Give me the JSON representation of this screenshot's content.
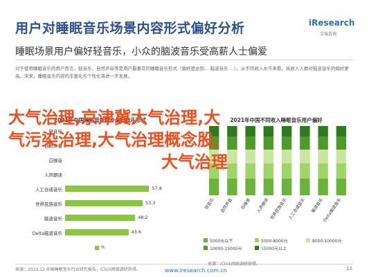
{
  "header": {
    "title": "用户对睡眠音乐场景内容形式偏好分析",
    "logo": "iResearch",
    "logo_sub": "艾瑞咨询",
    "subtitle": "睡眠场景用户偏好轻音乐，小众的脑波音乐受高薪人士偏爱",
    "note": "对于使用睡眠音乐的用户而言，轻音乐、自然声音等是用户最喜欢的睡眠音乐形式（偏好度达到… 脑波音乐 …）。从不同收入水平来看，高收入人群对脑波音乐的偏好更高。未来，睡眠音乐内容的丰富化与个性化将进一步发展。"
  },
  "overlay": {
    "line1": "大气治理,京津冀大气治理,大",
    "line2": "气污染治理,大气治理概念股,",
    "line3": "大气治理"
  },
  "chart_data": [
    {
      "type": "bar",
      "orientation": "horizontal",
      "title": "2021年中国睡眠音乐用户偏好音乐形式",
      "categories": [
        "轻音乐",
        "自然声音",
        "白噪音",
        "人声朗读",
        "人工合成音乐",
        "世界民族音乐",
        "脑波音乐",
        "Delta脑波音乐"
      ],
      "values": [
        null,
        null,
        null,
        null,
        57.8,
        53.3,
        48.2,
        43.6
      ],
      "value_labels": [
        "",
        "",
        "",
        "",
        "57.8",
        "53.3",
        "48.2",
        "43.6"
      ],
      "legend": [
        "%"
      ],
      "bar_color": "#8cc63f"
    },
    {
      "type": "bar",
      "stacked": true,
      "title": "2021年中国不同收入睡眠音乐用户偏好",
      "categories": [
        "轻音乐",
        "自然声音",
        "白噪音",
        "人声朗读",
        "世界民族音乐",
        "人工合成音乐",
        "脑波音乐",
        "Delta脑波音乐"
      ],
      "series": [
        {
          "name": "5000元以下",
          "color": "#6bb33a"
        },
        {
          "name": "5000-8000元",
          "color": "#9fd468"
        },
        {
          "name": "8000-10000元",
          "color": "#c8e6a0"
        },
        {
          "name": "10000-15000元",
          "color": "#4e9a2a"
        },
        {
          "name": "15000元以上",
          "color": "#2f7a1c"
        }
      ]
    }
  ],
  "footer": {
    "source": "来源：2021.12 中国睡眠音乐行业研究报告，iClick网络调研获得。",
    "site": "www.iresearch.com.cn",
    "source_right": "来源：iClick网络调研获得。",
    "page": "12"
  }
}
